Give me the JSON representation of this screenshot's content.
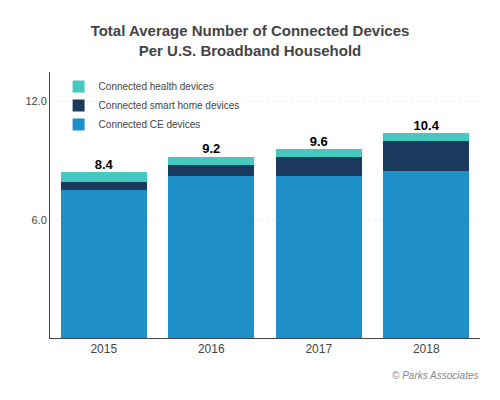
{
  "chart_data": {
    "type": "bar",
    "stacked": true,
    "title": "Total Average Number of Connected Devices",
    "subtitle": "Per U.S. Broadband Household",
    "categories": [
      "2015",
      "2016",
      "2017",
      "2018"
    ],
    "series": [
      {
        "name": "Connected CE devices",
        "color": "#1e8fc8",
        "values": [
          7.5,
          8.2,
          8.2,
          8.5
        ]
      },
      {
        "name": "Connected smart home devices",
        "color": "#1b3a5e",
        "values": [
          0.4,
          0.6,
          1.0,
          1.5
        ]
      },
      {
        "name": "Connected health devices",
        "color": "#45c8c0",
        "values": [
          0.5,
          0.4,
          0.4,
          0.4
        ]
      }
    ],
    "totals": [
      8.4,
      9.2,
      9.6,
      10.4
    ],
    "ylim": [
      0,
      13.5
    ],
    "yticks": [
      {
        "value": 6.0,
        "label": "6.0"
      },
      {
        "value": 12.0,
        "label": "12.0"
      }
    ],
    "grid": true,
    "legend": "upper left",
    "annotation": "© Parks Associates"
  }
}
